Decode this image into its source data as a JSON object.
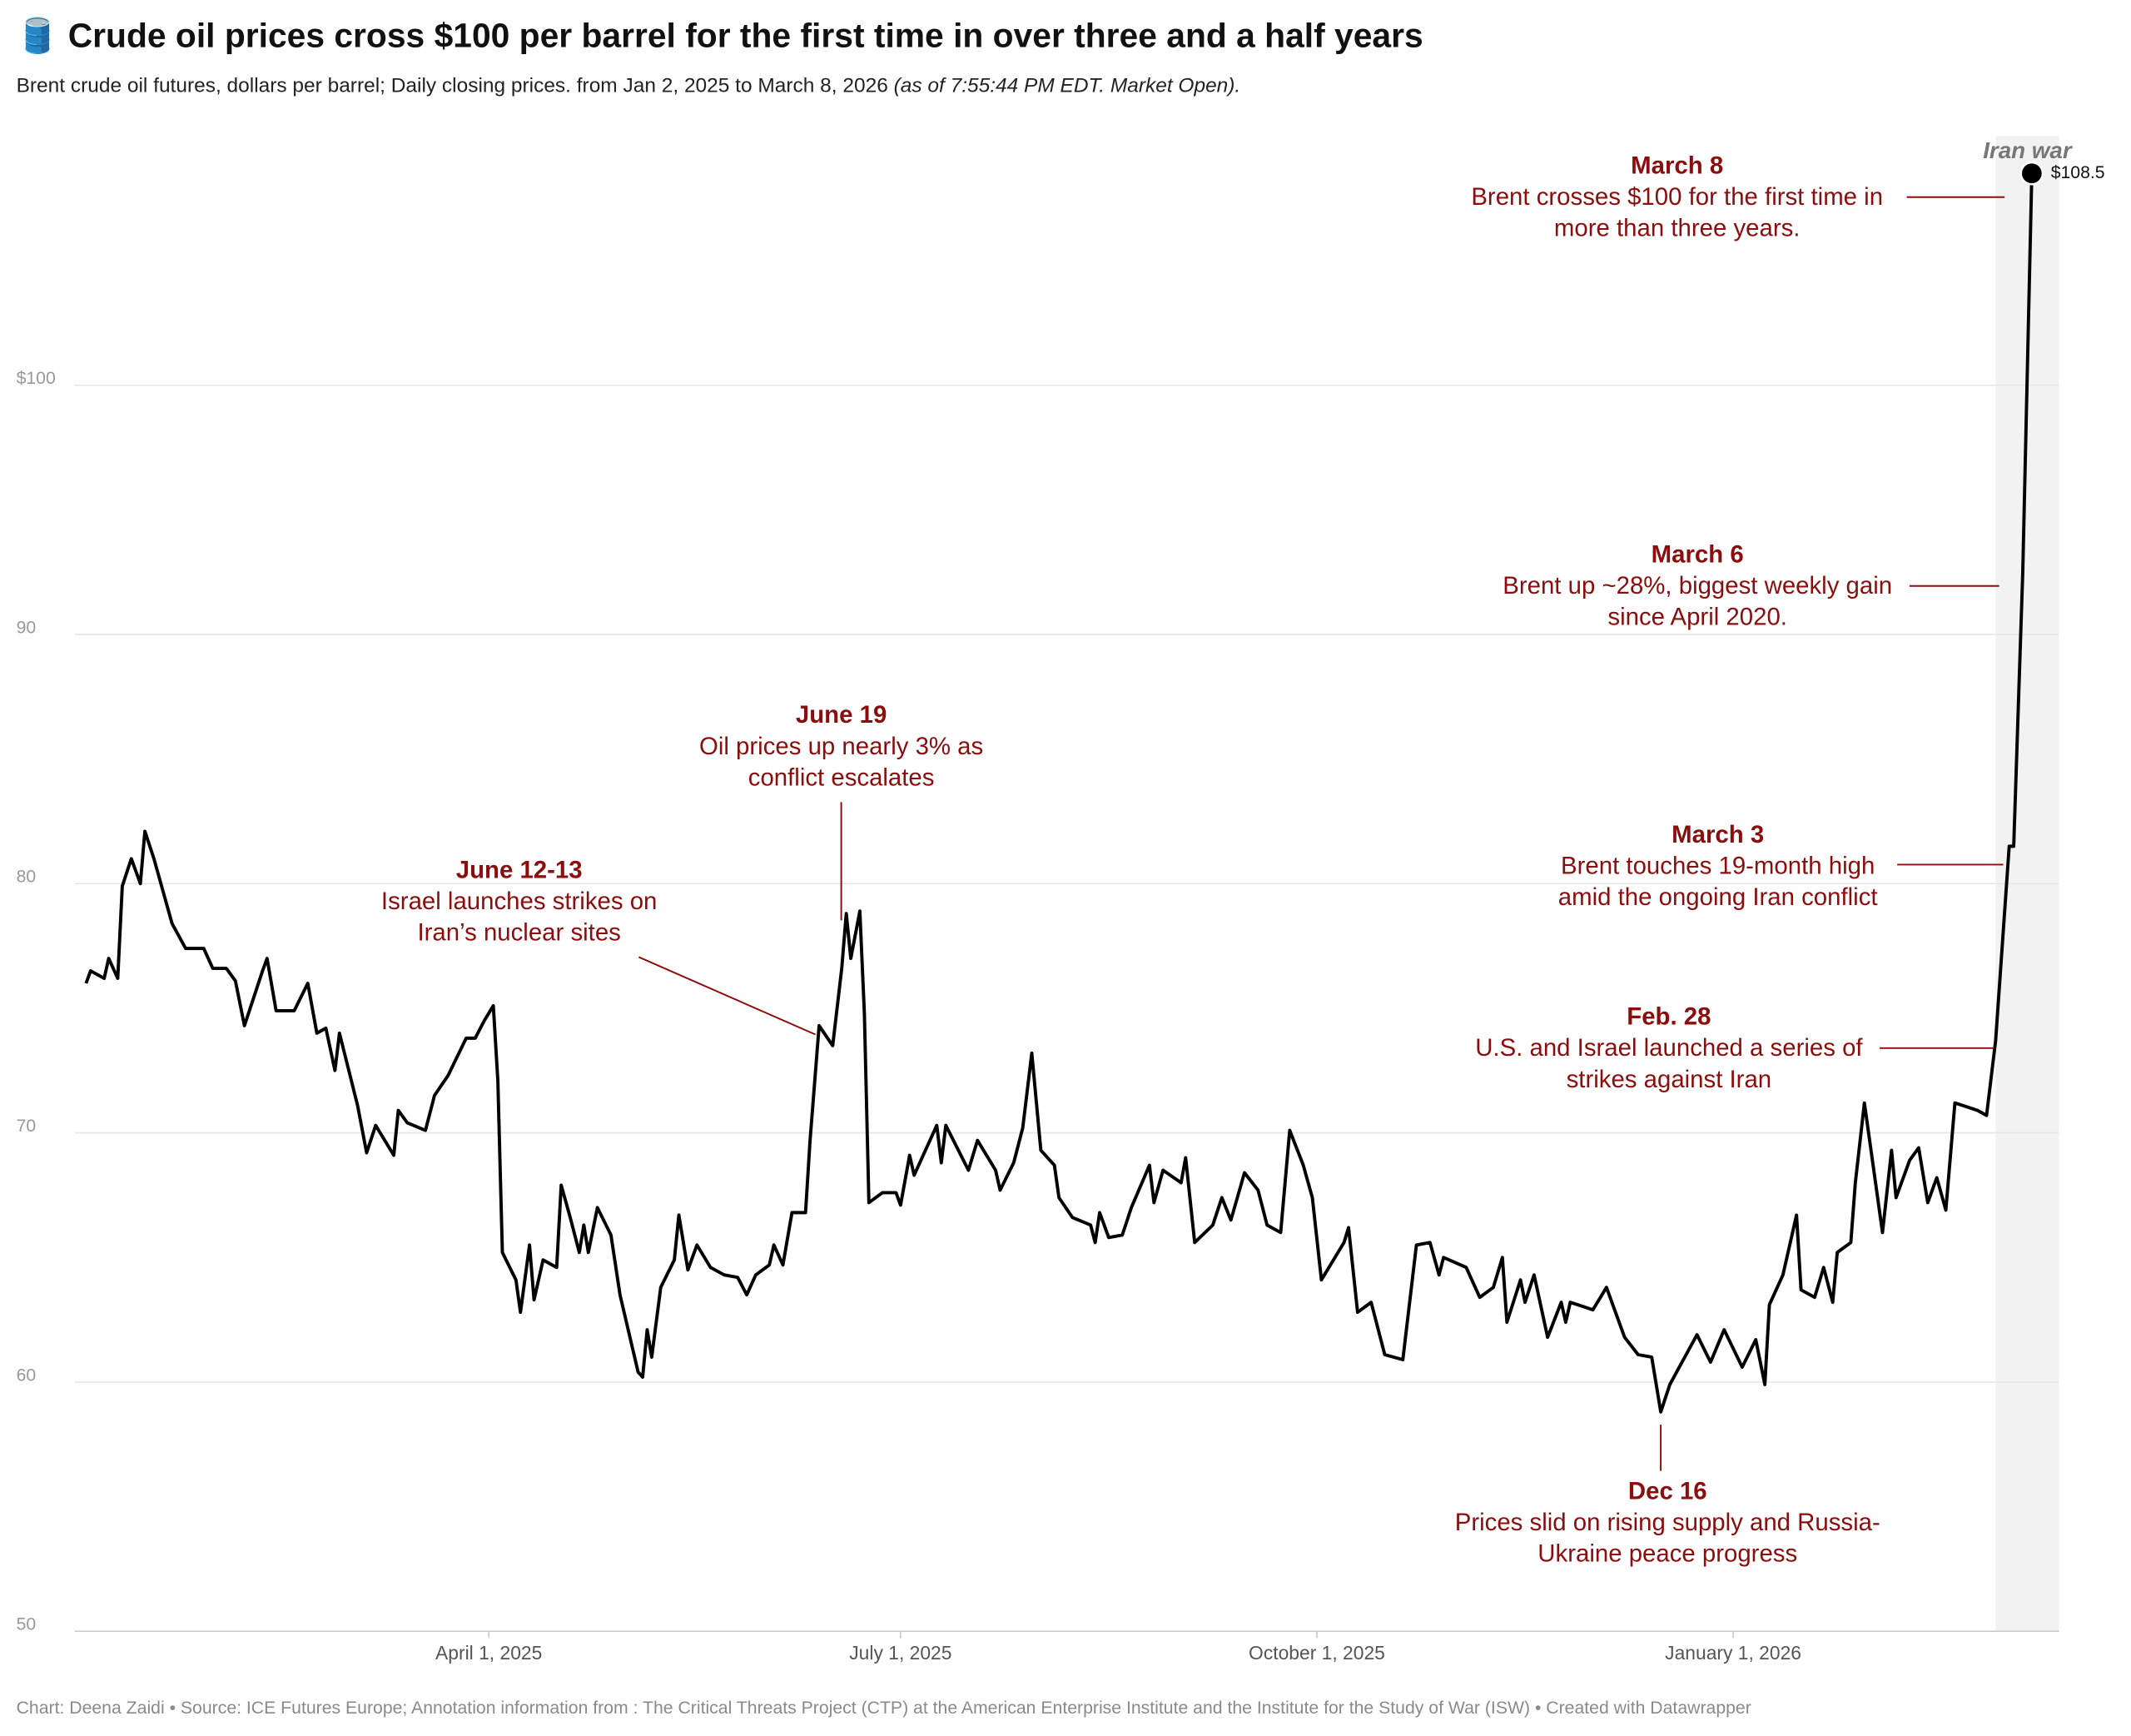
{
  "chart_data": {
    "type": "line",
    "title": "🛢️ Crude oil prices cross $100 per barrel for the first time in over three and a half years",
    "subtitle": "Brent crude oil futures, dollars per barrel; Daily closing prices. from Jan 2, 2025 to March 8, 2026",
    "subtitle_note": "(as of 7:55:44 PM EDT. Market Open).",
    "source": "Chart: Deena Zaidi • Source: ICE Futures Europe; Annotation information from : The Critical Threats Project (CTP) at the American Enterprise Institute and the Institute for the Study of War (ISW) • Created with Datawrapper",
    "color": "#000000",
    "grid": true,
    "xlim": [
      "2025-01-01",
      "2026-03-14"
    ],
    "xticks": [
      {
        "value": "2025-04-01",
        "label": "April 1, 2025"
      },
      {
        "value": "2025-07-01",
        "label": "July 1, 2025"
      },
      {
        "value": "2025-10-01",
        "label": "October 1, 2025"
      },
      {
        "value": "2026-01-01",
        "label": "January 1, 2026"
      }
    ],
    "ylim": [
      50,
      110
    ],
    "yticks": [
      50,
      60,
      70,
      80,
      90,
      {
        "value": 100,
        "label": "$100"
      }
    ],
    "end_label": "$108.5",
    "highlight": {
      "label": "Iran war",
      "start": "2026-02-28"
    },
    "x": [
      "2025-01-02",
      "2025-01-03",
      "2025-01-06",
      "2025-01-07",
      "2025-01-09",
      "2025-01-10",
      "2025-01-12",
      "2025-01-14",
      "2025-01-15",
      "2025-01-17",
      "2025-01-21",
      "2025-01-24",
      "2025-01-28",
      "2025-01-30",
      "2025-02-02",
      "2025-02-04",
      "2025-02-06",
      "2025-02-10",
      "2025-02-11",
      "2025-02-13",
      "2025-02-17",
      "2025-02-20",
      "2025-02-22",
      "2025-02-24",
      "2025-02-26",
      "2025-02-27",
      "2025-03-03",
      "2025-03-05",
      "2025-03-07",
      "2025-03-11",
      "2025-03-12",
      "2025-03-14",
      "2025-03-18",
      "2025-03-20",
      "2025-03-23",
      "2025-03-27",
      "2025-03-29",
      "2025-03-31",
      "2025-04-02",
      "2025-04-03",
      "2025-04-04",
      "2025-04-07",
      "2025-04-08",
      "2025-04-10",
      "2025-04-11",
      "2025-04-13",
      "2025-04-16",
      "2025-04-17",
      "2025-04-19",
      "2025-04-21",
      "2025-04-22",
      "2025-04-23",
      "2025-04-25",
      "2025-04-28",
      "2025-04-30",
      "2025-05-04",
      "2025-05-05",
      "2025-05-06",
      "2025-05-07",
      "2025-05-09",
      "2025-05-12",
      "2025-05-13",
      "2025-05-15",
      "2025-05-17",
      "2025-05-20",
      "2025-05-23",
      "2025-05-26",
      "2025-05-28",
      "2025-05-30",
      "2025-06-02",
      "2025-06-03",
      "2025-06-05",
      "2025-06-07",
      "2025-06-10",
      "2025-06-11",
      "2025-06-13",
      "2025-06-16",
      "2025-06-18",
      "2025-06-19",
      "2025-06-20",
      "2025-06-22",
      "2025-06-23",
      "2025-06-24",
      "2025-06-27",
      "2025-06-30",
      "2025-07-01",
      "2025-07-03",
      "2025-07-04",
      "2025-07-09",
      "2025-07-10",
      "2025-07-11",
      "2025-07-16",
      "2025-07-18",
      "2025-07-22",
      "2025-07-23",
      "2025-07-26",
      "2025-07-28",
      "2025-07-30",
      "2025-08-01",
      "2025-08-04",
      "2025-08-05",
      "2025-08-08",
      "2025-08-12",
      "2025-08-13",
      "2025-08-14",
      "2025-08-16",
      "2025-08-19",
      "2025-08-21",
      "2025-08-25",
      "2025-08-26",
      "2025-08-28",
      "2025-09-01",
      "2025-09-02",
      "2025-09-04",
      "2025-09-08",
      "2025-09-10",
      "2025-09-12",
      "2025-09-15",
      "2025-09-18",
      "2025-09-20",
      "2025-09-23",
      "2025-09-25",
      "2025-09-28",
      "2025-09-30",
      "2025-10-02",
      "2025-10-07",
      "2025-10-08",
      "2025-10-10",
      "2025-10-13",
      "2025-10-16",
      "2025-10-20",
      "2025-10-23",
      "2025-10-26",
      "2025-10-28",
      "2025-10-29",
      "2025-11-03",
      "2025-11-06",
      "2025-11-09",
      "2025-11-11",
      "2025-11-12",
      "2025-11-15",
      "2025-11-16",
      "2025-11-18",
      "2025-11-21",
      "2025-11-24",
      "2025-11-25",
      "2025-11-26",
      "2025-12-01",
      "2025-12-04",
      "2025-12-08",
      "2025-12-11",
      "2025-12-14",
      "2025-12-16",
      "2025-12-18",
      "2025-12-24",
      "2025-12-27",
      "2025-12-30",
      "2026-01-03",
      "2026-01-06",
      "2026-01-08",
      "2026-01-09",
      "2026-01-12",
      "2026-01-15",
      "2026-01-16",
      "2026-01-19",
      "2026-01-21",
      "2026-01-23",
      "2026-01-24",
      "2026-01-27",
      "2026-01-28",
      "2026-01-30",
      "2026-02-03",
      "2026-02-05",
      "2026-02-06",
      "2026-02-09",
      "2026-02-11",
      "2026-02-13",
      "2026-02-15",
      "2026-02-17",
      "2026-02-19",
      "2026-02-24",
      "2026-02-26",
      "2026-02-28",
      "2026-03-03",
      "2026-03-04",
      "2026-03-06",
      "2026-03-08"
    ],
    "values": [
      76.0,
      76.5,
      76.2,
      77.0,
      76.2,
      79.9,
      81.0,
      80.0,
      82.1,
      81.0,
      78.4,
      77.4,
      77.4,
      76.6,
      76.6,
      76.1,
      74.3,
      76.5,
      77.0,
      74.9,
      74.9,
      76.0,
      74.0,
      74.2,
      72.5,
      74.0,
      71.1,
      69.2,
      70.3,
      69.1,
      70.9,
      70.4,
      70.1,
      71.5,
      72.3,
      73.8,
      73.8,
      74.5,
      75.1,
      72.1,
      65.2,
      64.1,
      62.8,
      65.5,
      63.3,
      64.9,
      64.6,
      67.9,
      66.6,
      65.2,
      66.3,
      65.2,
      67.0,
      65.9,
      63.5,
      60.4,
      60.2,
      62.1,
      61.0,
      63.8,
      64.9,
      66.7,
      64.5,
      65.5,
      64.6,
      64.3,
      64.2,
      63.5,
      64.3,
      64.7,
      65.5,
      64.7,
      66.8,
      66.8,
      69.7,
      74.3,
      73.5,
      76.6,
      78.8,
      77.0,
      78.9,
      74.8,
      67.2,
      67.6,
      67.6,
      67.1,
      69.1,
      68.3,
      70.3,
      68.8,
      70.3,
      68.5,
      69.7,
      68.5,
      67.7,
      68.8,
      70.2,
      73.2,
      69.3,
      68.7,
      67.4,
      66.6,
      66.3,
      65.6,
      66.8,
      65.8,
      65.9,
      67.0,
      68.7,
      67.2,
      68.5,
      68.0,
      69.0,
      65.6,
      66.3,
      67.4,
      66.5,
      68.4,
      67.7,
      66.3,
      66.0,
      70.1,
      68.7,
      67.4,
      64.1,
      65.6,
      66.2,
      62.8,
      63.2,
      61.1,
      60.9,
      65.5,
      65.6,
      64.3,
      65.0,
      64.6,
      63.4,
      63.8,
      65.0,
      62.4,
      64.1,
      63.2,
      64.3,
      61.8,
      63.2,
      62.4,
      63.2,
      62.9,
      63.8,
      61.8,
      61.1,
      61.0,
      58.8,
      59.9,
      61.9,
      60.8,
      62.1,
      60.6,
      61.7,
      59.9,
      63.1,
      64.3,
      66.7,
      63.7,
      63.4,
      64.6,
      63.2,
      65.2,
      65.6,
      68.0,
      71.2,
      66.0,
      69.3,
      67.4,
      68.9,
      69.4,
      67.2,
      68.2,
      66.9,
      71.2,
      70.9,
      70.7,
      73.7,
      81.5,
      81.5,
      92.5,
      108.5
    ],
    "annotations": [
      {
        "title": "March 8",
        "lines": [
          "Brent crosses $100 for the first time in",
          "more than three years."
        ]
      },
      {
        "title": "March 6",
        "lines": [
          "Brent up ~28%, biggest weekly gain",
          "since April 2020."
        ]
      },
      {
        "title": "March 3",
        "lines": [
          "Brent touches 19-month high",
          "amid the ongoing Iran conflict"
        ]
      },
      {
        "title": "Feb. 28",
        "lines": [
          "U.S. and Israel launched a series of",
          "strikes against Iran"
        ]
      },
      {
        "title": "June 19",
        "lines": [
          "Oil prices up nearly 3% as",
          "conflict escalates"
        ]
      },
      {
        "title": "June 12-13",
        "lines": [
          "Israel launches strikes on",
          "Iran’s nuclear sites"
        ]
      },
      {
        "title": "Dec 16",
        "lines": [
          "Prices slid on rising supply and Russia-",
          "Ukraine peace progress"
        ]
      }
    ]
  }
}
